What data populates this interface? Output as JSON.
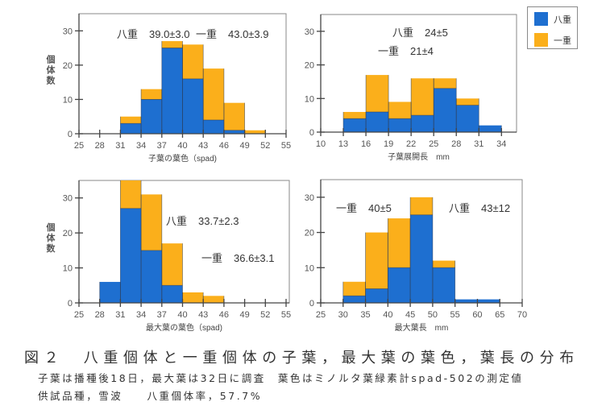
{
  "colors": {
    "double": "#1e6fd0",
    "single": "#fbaf1b",
    "axis": "#444444",
    "frame": "#8a8a8a"
  },
  "legend": [
    {
      "label": "八重",
      "color": "#1e6fd0"
    },
    {
      "label": "一重",
      "color": "#fbaf1b"
    }
  ],
  "ylabel": "個\n体\n数",
  "chart_data": [
    {
      "type": "bar",
      "stacked": true,
      "title": "",
      "xlabel": "子葉の葉色（spad)",
      "ylabel": "個体数",
      "xlim": [
        25,
        55
      ],
      "ylim": [
        0,
        35
      ],
      "xticks": [
        25,
        28,
        31,
        34,
        37,
        40,
        43,
        46,
        49,
        52,
        55
      ],
      "yticks": [
        0,
        10,
        20,
        30
      ],
      "bins": [
        [
          31,
          34
        ],
        [
          34,
          37
        ],
        [
          37,
          40
        ],
        [
          40,
          43
        ],
        [
          43,
          46
        ],
        [
          46,
          49
        ],
        [
          49,
          52
        ]
      ],
      "series": [
        {
          "name": "八重",
          "values": [
            3,
            10,
            25,
            16,
            4,
            1,
            0
          ]
        },
        {
          "name": "一重",
          "values": [
            2,
            3,
            2,
            10,
            15,
            8,
            1
          ]
        }
      ],
      "annotations": [
        {
          "name": "八重",
          "text": "39.0±3.0"
        },
        {
          "name": "一重",
          "text": "43.0±3.9"
        }
      ],
      "show_ylabel": true
    },
    {
      "type": "bar",
      "stacked": true,
      "title": "",
      "xlabel": "子葉展開長　mm",
      "ylabel": "",
      "xlim": [
        10,
        36
      ],
      "ylim": [
        0,
        35
      ],
      "xticks": [
        10,
        13,
        16,
        19,
        22,
        25,
        28,
        31,
        34
      ],
      "yticks": [
        0,
        10,
        20,
        30
      ],
      "bins": [
        [
          13,
          16
        ],
        [
          16,
          19
        ],
        [
          19,
          22
        ],
        [
          22,
          25
        ],
        [
          25,
          28
        ],
        [
          28,
          31
        ],
        [
          31,
          34
        ]
      ],
      "series": [
        {
          "name": "八重",
          "values": [
            4,
            6,
            4,
            5,
            13,
            8,
            2
          ]
        },
        {
          "name": "一重",
          "values": [
            2,
            11,
            5,
            11,
            3,
            2,
            0
          ]
        }
      ],
      "annotations": [
        {
          "name": "八重",
          "text": "24±5"
        },
        {
          "name": "一重",
          "text": "21±4"
        }
      ],
      "show_ylabel": false
    },
    {
      "type": "bar",
      "stacked": true,
      "title": "",
      "xlabel": "最大葉の葉色（spad)",
      "ylabel": "個体数",
      "xlim": [
        25,
        55
      ],
      "ylim": [
        0,
        35
      ],
      "xticks": [
        25,
        28,
        31,
        34,
        37,
        40,
        43,
        46,
        49,
        52,
        55
      ],
      "yticks": [
        0,
        10,
        20,
        30
      ],
      "bins": [
        [
          28,
          31
        ],
        [
          31,
          34
        ],
        [
          34,
          37
        ],
        [
          37,
          40
        ],
        [
          40,
          43
        ],
        [
          43,
          46
        ]
      ],
      "series": [
        {
          "name": "八重",
          "values": [
            6,
            27,
            15,
            5,
            0,
            0
          ]
        },
        {
          "name": "一重",
          "values": [
            0,
            8,
            16,
            12,
            3,
            2
          ]
        }
      ],
      "annotations": [
        {
          "name": "八重",
          "text": "33.7±2.3"
        },
        {
          "name": "一重",
          "text": "36.6±3.1"
        }
      ],
      "show_ylabel": true
    },
    {
      "type": "bar",
      "stacked": true,
      "title": "",
      "xlabel": "最大葉長　mm",
      "ylabel": "",
      "xlim": [
        25,
        70
      ],
      "ylim": [
        0,
        35
      ],
      "xticks": [
        25,
        30,
        35,
        40,
        45,
        50,
        55,
        60,
        65,
        70
      ],
      "yticks": [
        0,
        10,
        20,
        30
      ],
      "bins": [
        [
          30,
          35
        ],
        [
          35,
          40
        ],
        [
          40,
          45
        ],
        [
          45,
          50
        ],
        [
          50,
          55
        ],
        [
          55,
          60
        ],
        [
          60,
          65
        ]
      ],
      "series": [
        {
          "name": "八重",
          "values": [
            2,
            4,
            10,
            25,
            10,
            1,
            1
          ]
        },
        {
          "name": "一重",
          "values": [
            4,
            16,
            14,
            5,
            2,
            0,
            0
          ]
        }
      ],
      "annotations": [
        {
          "name": "一重",
          "text": "40±5"
        },
        {
          "name": "八重",
          "text": "43±12"
        }
      ],
      "show_ylabel": false
    }
  ],
  "caption": {
    "title": "図２　八重個体と一重個体の子葉，最大葉の葉色，葉長の分布",
    "line1": "子葉は播種後18日，最大葉は32日に調査　葉色はミノルタ葉緑素計spad-502の測定値",
    "line2": "供試品種，雪波　　八重個体率，57.7%"
  }
}
